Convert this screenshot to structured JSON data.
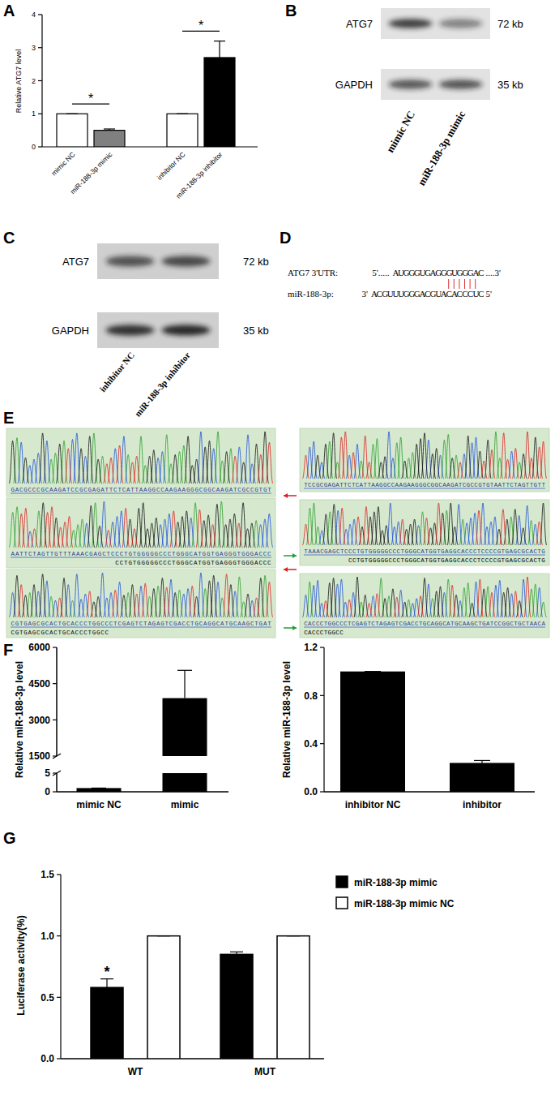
{
  "panel_labels": [
    "A",
    "B",
    "C",
    "D",
    "E",
    "F",
    "G"
  ],
  "chart_data": [
    {
      "type": "bar",
      "y_label": "Relative ATG7 level",
      "categories": [
        "mimic NC",
        "miR-188-3p mimic",
        "inhibitor NC",
        "miR-188-3p inhibitor"
      ],
      "values": [
        1,
        0.5,
        1,
        2.7
      ],
      "errors": [
        0,
        0.04,
        0,
        0.5
      ],
      "colors": [
        "#ffffff",
        "#808080",
        "#ffffff",
        "#000000"
      ],
      "ylim": [
        0,
        4
      ],
      "yticks": [
        0,
        1,
        2,
        3,
        4
      ],
      "annotations": [
        "*",
        "*"
      ]
    },
    {
      "type": "bar",
      "y_label": "Relative miR-188-3p level",
      "categories": [
        "mimic NC",
        "mimic"
      ],
      "values": [
        1,
        3900
      ],
      "errors": [
        0,
        1150
      ],
      "color": "#000000",
      "ylim": [
        0,
        6000
      ],
      "yticks": [
        0,
        5,
        1500,
        3000,
        4500,
        6000
      ],
      "axis_break": [
        5,
        1500
      ]
    },
    {
      "type": "bar",
      "y_label": "Relative miR-188-3p level",
      "categories": [
        "inhibitor NC",
        "inhibitor"
      ],
      "values": [
        1,
        0.24
      ],
      "errors": [
        0,
        0.02
      ],
      "color": "#000000",
      "ylim": [
        0,
        1.2
      ],
      "yticks": [
        {
          "value": 0,
          "label": "0.0"
        },
        0.4,
        0.8,
        1.2
      ]
    },
    {
      "type": "bar",
      "y_label": "Luciferase activity(%)",
      "categories": [
        "WT",
        "MUT"
      ],
      "series": [
        {
          "name": "miR-188-3p mimic",
          "color": "#000000",
          "values": [
            0.58,
            0.85
          ],
          "errors": [
            0.07,
            0.02
          ]
        },
        {
          "name": "miR-188-3p mimic NC",
          "color": "#ffffff",
          "values": [
            1,
            1
          ],
          "errors": [
            0,
            0
          ]
        }
      ],
      "ylim": [
        0,
        1.5
      ],
      "yticks": [
        {
          "value": 0,
          "label": "0.0"
        },
        0.5,
        {
          "value": 1,
          "label": "1.0"
        },
        1.5
      ],
      "legend": "top-right",
      "annotations": [
        "*"
      ]
    }
  ],
  "blots": [
    {
      "rows": [
        "ATG7",
        "GAPDH"
      ],
      "sizes": [
        "72 kb",
        "35 kb"
      ],
      "lanes": [
        "mimic NC",
        "miR-188-3p mimic"
      ]
    },
    {
      "rows": [
        "ATG7",
        "GAPDH"
      ],
      "sizes": [
        "72 kb",
        "35 kb"
      ],
      "lanes": [
        "inhibitor NC",
        "miR-188-3p inhibitor"
      ]
    }
  ],
  "alignment": {
    "rows": [
      {
        "name": "ATG7 3'UTR:",
        "left": "5'.....",
        "sequence": "AUGGGUGAGGGUGGGAC",
        "right": "....3'"
      },
      {
        "name": "miR-188-3p:",
        "left": "3'",
        "sequence": "ACGUUUGGGACGUACACCCUC",
        "right": "5'"
      }
    ]
  },
  "chromatograms": {
    "left": [
      {
        "read": "GACGCCCGCAAGATCCGCGAGATTCTCATTAAGGCCAAGAAGGGCGGCAAGATCGCCGTGT"
      },
      {
        "read": "AATTCTAGTTGTTTAAACGAGCTCCCTGTGGGGGCCCTGGGCATGGTGAGGGTGGGACCC",
        "reference": "CCTGTGGGGGCCCTGGGCATGGTGAGGGTGGGACCC"
      },
      {
        "read": "CGTGAGCGCACTGCACCCTGGCCCTCGAGTCTAGAGTCGACCTGCAGGCATGCAAGCTGAT",
        "reference": "CGTGAGCGCACTGCACCCTGGCC"
      }
    ],
    "right": [
      {
        "read": "TCCGCGAGATTCTCATTAAGGCCAAGAAGGGCGGCAAGATCGCCGTGTAATTCTAGTTGTT"
      },
      {
        "read": "TAAACGAGCTCCCTGTGGGGGCCCTGGGCATGGTGAGGCACCCTCCCCGTGAGCGCACTG",
        "reference": "CCTGTGGGGGCCCTGGGCATGGTGAGGCACCCTCCCCGTGAGCGCACTG"
      },
      {
        "read": "CACCCTGGCCCTCGAGTCTAGAGTCGACCTGCAGGCATGCAAGCTGATCCGGCTGCTAACA",
        "reference": "CACCCTGGCC"
      }
    ]
  }
}
